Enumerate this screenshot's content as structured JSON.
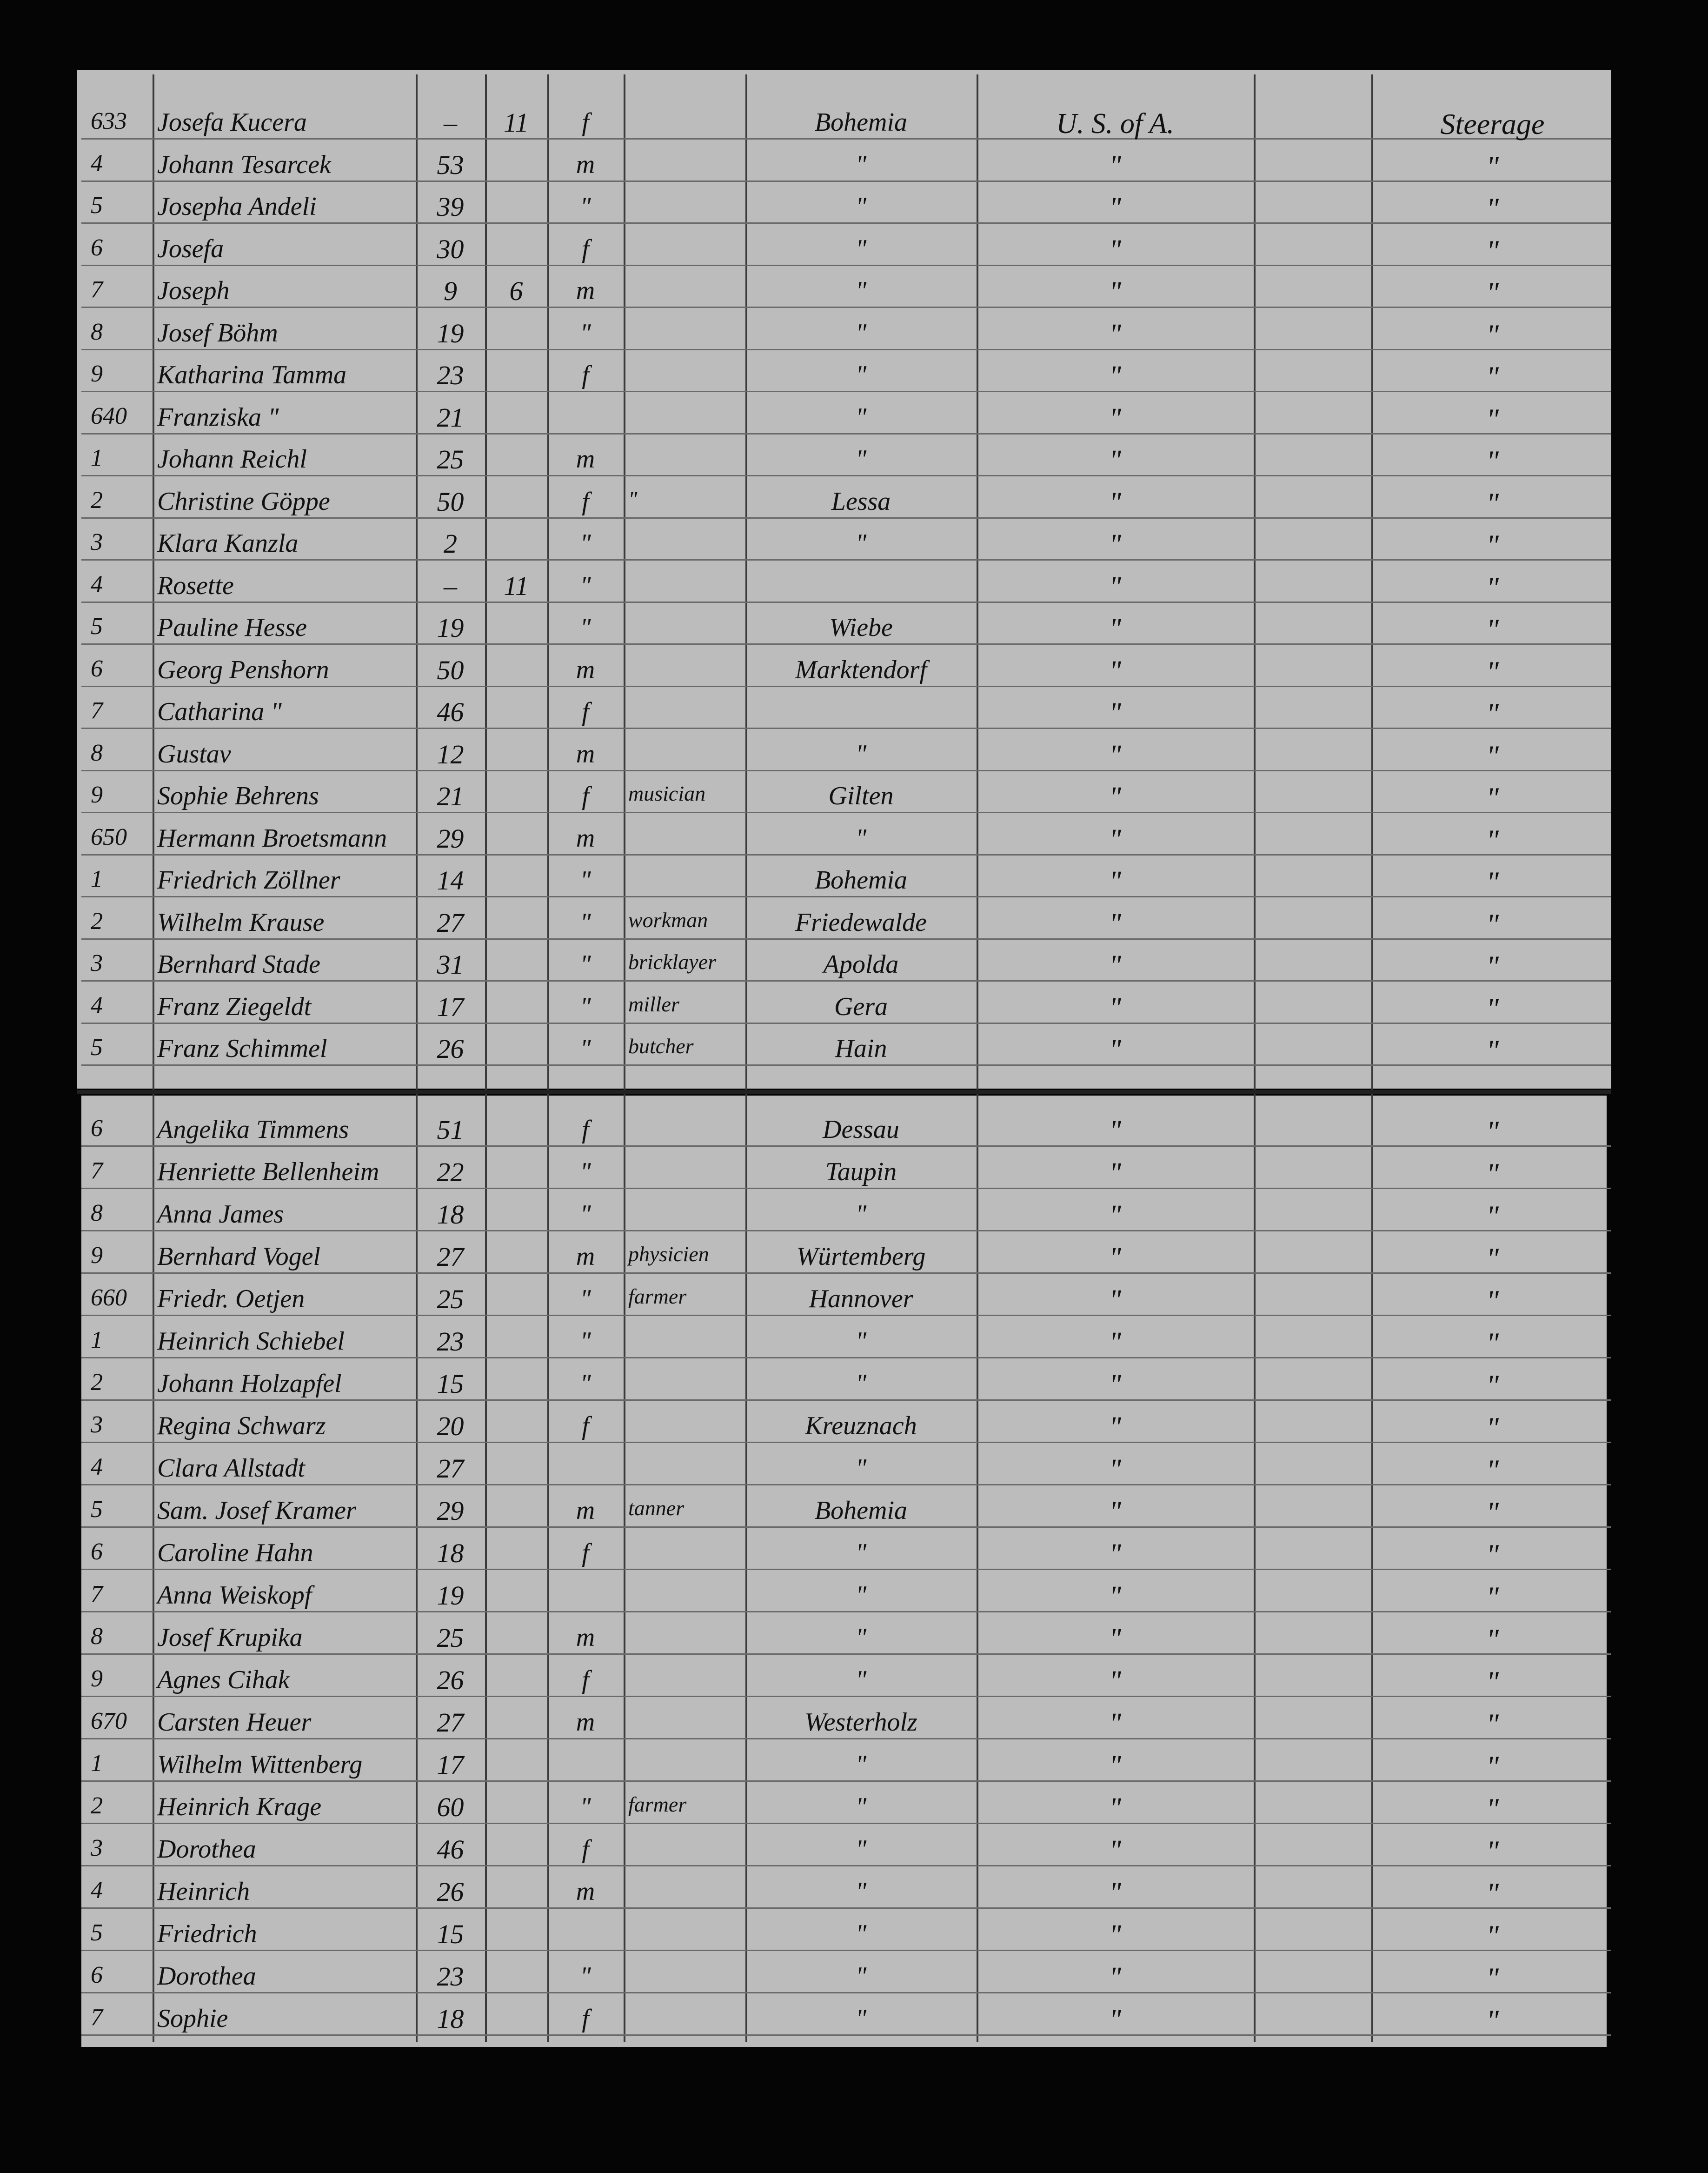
{
  "rows": [
    [
      "633",
      "Josefa Kucera",
      "–",
      "11",
      "f",
      null,
      "Bohemia",
      "U. S. of A.",
      "Steerage"
    ],
    [
      "4",
      "Johann Tesarcek",
      "53",
      null,
      "m",
      null,
      "\"",
      "\"",
      "\""
    ],
    [
      "5",
      "Josepha Andeli",
      "39",
      null,
      "\"",
      null,
      "\"",
      "\"",
      "\""
    ],
    [
      "6",
      "Josefa",
      "30",
      null,
      "f",
      null,
      "\"",
      "\"",
      "\""
    ],
    [
      "7",
      "Joseph",
      "9",
      "6",
      "m",
      null,
      "\"",
      "\"",
      "\""
    ],
    [
      "8",
      "Josef Böhm",
      "19",
      null,
      "\"",
      null,
      "\"",
      "\"",
      "\""
    ],
    [
      "9",
      "Katharina Tamma",
      "23",
      null,
      "f",
      null,
      "\"",
      "\"",
      "\""
    ],
    [
      "640",
      "Franziska \"",
      "21",
      null,
      null,
      null,
      "\"",
      "\"",
      "\""
    ],
    [
      "1",
      "Johann Reichl",
      "25",
      null,
      "m",
      null,
      "\"",
      "\"",
      "\""
    ],
    [
      "2",
      "Christine Göppe",
      "50",
      null,
      "f",
      "\"",
      "Lessa",
      "\"",
      "\""
    ],
    [
      "3",
      "Klara Kanzla",
      "2",
      null,
      "\"",
      null,
      "\"",
      "\"",
      "\""
    ],
    [
      "4",
      "Rosette",
      "–",
      "11",
      "\"",
      null,
      null,
      "\"",
      "\""
    ],
    [
      "5",
      "Pauline Hesse",
      "19",
      null,
      "\"",
      null,
      "Wiebe",
      "\"",
      "\""
    ],
    [
      "6",
      "Georg Penshorn",
      "50",
      null,
      "m",
      null,
      "Marktendorf",
      "\"",
      "\""
    ],
    [
      "7",
      "Catharina \"",
      "46",
      null,
      "f",
      null,
      null,
      "\"",
      "\""
    ],
    [
      "8",
      "Gustav",
      "12",
      null,
      "m",
      null,
      "\"",
      "\"",
      "\""
    ],
    [
      "9",
      "Sophie Behrens",
      "21",
      null,
      "f",
      "musician",
      "Gilten",
      "\"",
      "\""
    ],
    [
      "650",
      "Hermann Broetsmann",
      "29",
      null,
      "m",
      null,
      "\"",
      "\"",
      "\""
    ],
    [
      "1",
      "Friedrich Zöllner",
      "14",
      null,
      "\"",
      null,
      "Bohemia",
      "\"",
      "\""
    ],
    [
      "2",
      "Wilhelm Krause",
      "27",
      null,
      "\"",
      "workman",
      "Friedewalde",
      "\"",
      "\""
    ],
    [
      "3",
      "Bernhard Stade",
      "31",
      null,
      "\"",
      "bricklayer",
      "Apolda",
      "\"",
      "\""
    ],
    [
      "4",
      "Franz Ziegeldt",
      "17",
      null,
      "\"",
      "miller",
      "Gera",
      "\"",
      "\""
    ],
    [
      "5",
      "Franz Schimmel",
      "26",
      null,
      "\"",
      "butcher",
      "Hain",
      "\"",
      "\""
    ],
    [
      "6",
      "Angelika Timmens",
      "51",
      null,
      "f",
      null,
      "Dessau",
      "\"",
      "\""
    ],
    [
      "7",
      "Henriette Bellenheim",
      "22",
      null,
      "\"",
      null,
      "Taupin",
      "\"",
      "\""
    ],
    [
      "8",
      "Anna James",
      "18",
      null,
      "\"",
      null,
      "\"",
      "\"",
      "\""
    ],
    [
      "9",
      "Bernhard Vogel",
      "27",
      null,
      "m",
      "physicien",
      "Würtemberg",
      "\"",
      "\""
    ],
    [
      "660",
      "Friedr. Oetjen",
      "25",
      null,
      "\"",
      "farmer",
      "Hannover",
      "\"",
      "\""
    ],
    [
      "1",
      "Heinrich Schiebel",
      "23",
      null,
      "\"",
      null,
      "\"",
      "\"",
      "\""
    ],
    [
      "2",
      "Johann Holzapfel",
      "15",
      null,
      "\"",
      null,
      "\"",
      "\"",
      "\""
    ],
    [
      "3",
      "Regina Schwarz",
      "20",
      null,
      "f",
      null,
      "Kreuznach",
      "\"",
      "\""
    ],
    [
      "4",
      "Clara Allstadt",
      "27",
      null,
      null,
      null,
      "\"",
      "\"",
      "\""
    ],
    [
      "5",
      "Sam. Josef Kramer",
      "29",
      null,
      "m",
      "tanner",
      "Bohemia",
      "\"",
      "\""
    ],
    [
      "6",
      "Caroline Hahn",
      "18",
      null,
      "f",
      null,
      "\"",
      "\"",
      "\""
    ],
    [
      "7",
      "Anna Weiskopf",
      "19",
      null,
      null,
      null,
      "\"",
      "\"",
      "\""
    ],
    [
      "8",
      "Josef Krupika",
      "25",
      null,
      "m",
      null,
      "\"",
      "\"",
      "\""
    ],
    [
      "9",
      "Agnes Cihak",
      "26",
      null,
      "f",
      null,
      "\"",
      "\"",
      "\""
    ],
    [
      "670",
      "Carsten Heuer",
      "27",
      null,
      "m",
      null,
      "Westerholz",
      "\"",
      "\""
    ],
    [
      "1",
      "Wilhelm Wittenberg",
      "17",
      null,
      null,
      null,
      "\"",
      "\"",
      "\""
    ],
    [
      "2",
      "Heinrich Krage",
      "60",
      null,
      "\"",
      "farmer",
      "\"",
      "\"",
      "\""
    ],
    [
      "3",
      "Dorothea",
      "46",
      null,
      "f",
      null,
      "\"",
      "\"",
      "\""
    ],
    [
      "4",
      "Heinrich",
      "26",
      null,
      "m",
      null,
      "\"",
      "\"",
      "\""
    ],
    [
      "5",
      "Friedrich",
      "15",
      null,
      null,
      null,
      "\"",
      "\"",
      "\""
    ],
    [
      "6",
      "Dorothea",
      "23",
      null,
      "\"",
      null,
      "\"",
      "\"",
      "\""
    ],
    [
      "7",
      "Sophie",
      "18",
      null,
      "f",
      null,
      "\"",
      "\"",
      "\""
    ]
  ]
}
